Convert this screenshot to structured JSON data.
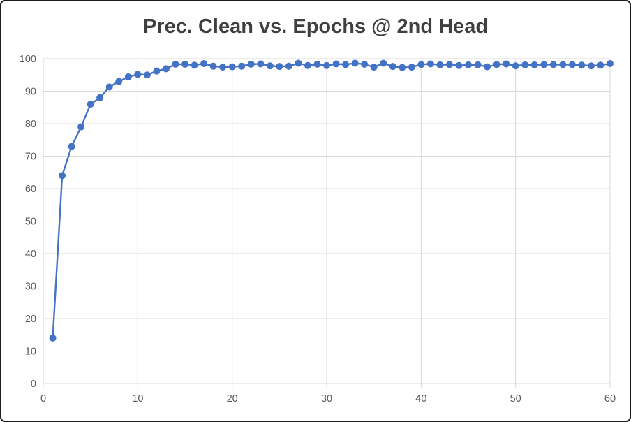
{
  "window": {
    "background_color": "#ffffff",
    "border_color": "#1c1c1c"
  },
  "styles": {
    "title_color": "#3f3f3f",
    "tick_label_color": "#595959",
    "gridline_color": "#d9d9d9",
    "plot_background": "#ffffff"
  },
  "chart_data": {
    "type": "line",
    "title": "Prec. Clean vs. Epochs @ 2nd Head",
    "xlabel": "",
    "ylabel": "",
    "legend_position": "none",
    "grid": true,
    "line_color": "#4472C4",
    "marker": "circle",
    "marker_color": "#4472C4",
    "marker_radius": 5,
    "line_width": 2.4,
    "xlim": [
      0,
      60
    ],
    "ylim": [
      0,
      100
    ],
    "x_ticks": [
      0,
      10,
      20,
      30,
      40,
      50,
      60
    ],
    "y_ticks": [
      0,
      10,
      20,
      30,
      40,
      50,
      60,
      70,
      80,
      90,
      100
    ],
    "x": [
      1,
      2,
      3,
      4,
      5,
      6,
      7,
      8,
      9,
      10,
      11,
      12,
      13,
      14,
      15,
      16,
      17,
      18,
      19,
      20,
      21,
      22,
      23,
      24,
      25,
      26,
      27,
      28,
      29,
      30,
      31,
      32,
      33,
      34,
      35,
      36,
      37,
      38,
      39,
      40,
      41,
      42,
      43,
      44,
      45,
      46,
      47,
      48,
      49,
      50,
      51,
      52,
      53,
      54,
      55,
      56,
      57,
      58,
      59,
      60
    ],
    "values": [
      14,
      64,
      73,
      79,
      86,
      88,
      91.3,
      93,
      94.4,
      95.2,
      95,
      96.2,
      96.9,
      98.3,
      98.3,
      98,
      98.5,
      97.7,
      97.4,
      97.5,
      97.7,
      98.3,
      98.4,
      97.8,
      97.6,
      97.7,
      98.6,
      97.9,
      98.3,
      97.9,
      98.4,
      98.2,
      98.6,
      98.3,
      97.4,
      98.6,
      97.6,
      97.3,
      97.4,
      98.2,
      98.4,
      98.1,
      98.2,
      97.9,
      98.1,
      98.1,
      97.5,
      98.2,
      98.4,
      97.8,
      98.1,
      98.1,
      98.2,
      98.2,
      98.2,
      98.2,
      98,
      97.8,
      98,
      98.5
    ]
  }
}
